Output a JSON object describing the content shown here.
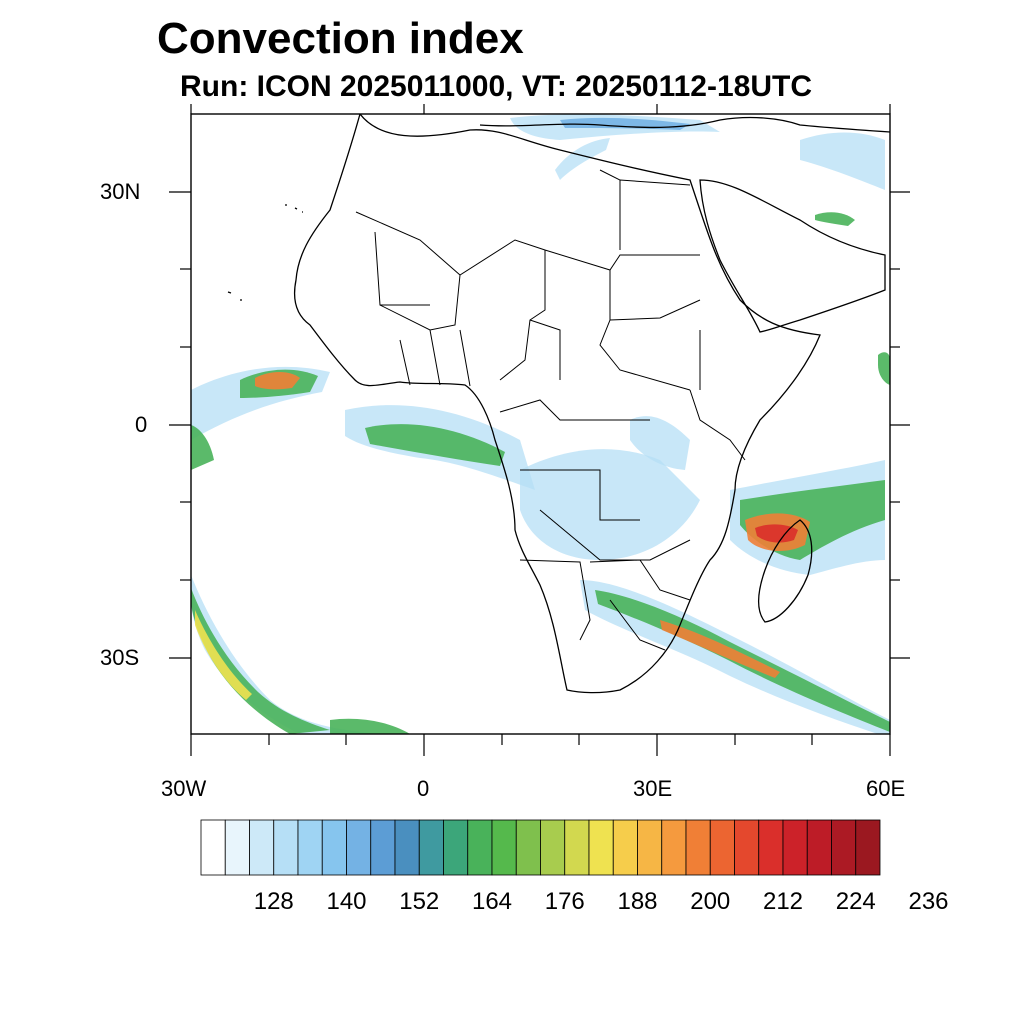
{
  "title": "Convection index",
  "subtitle": "Run: ICON 2025011000,  VT: 20250112-18UTC",
  "axes": {
    "lon_labels": [
      "30W",
      "0",
      "30E",
      "60E"
    ],
    "lat_labels": [
      "30N",
      "0",
      "30S"
    ]
  },
  "colorbar": {
    "labels": [
      "128",
      "140",
      "152",
      "164",
      "176",
      "188",
      "200",
      "212",
      "224",
      "236"
    ],
    "colors": [
      "#ffffff",
      "#e8f5fc",
      "#cde9f8",
      "#b6dff6",
      "#9fd4f3",
      "#86c5ee",
      "#74b2e4",
      "#5c9dd5",
      "#4a8fbf",
      "#3f9aa0",
      "#3ca67a",
      "#49b25a",
      "#55b94c",
      "#7fc04d",
      "#a8cc4e",
      "#d2d84f",
      "#efe250",
      "#f6cd4b",
      "#f6b645",
      "#f59a3e",
      "#f07f36",
      "#ec6531",
      "#e4482d",
      "#da2f2b",
      "#cc2229",
      "#bd1c27",
      "#ac1a24",
      "#9b1820"
    ]
  },
  "map_colors": {
    "frame": "#000000",
    "ocean": "#ffffff",
    "light": "#b6dff6",
    "mid": "#74b2e4",
    "green": "#49b25a",
    "yellow": "#efe250",
    "orange": "#f07f36",
    "red": "#da2f2b"
  }
}
